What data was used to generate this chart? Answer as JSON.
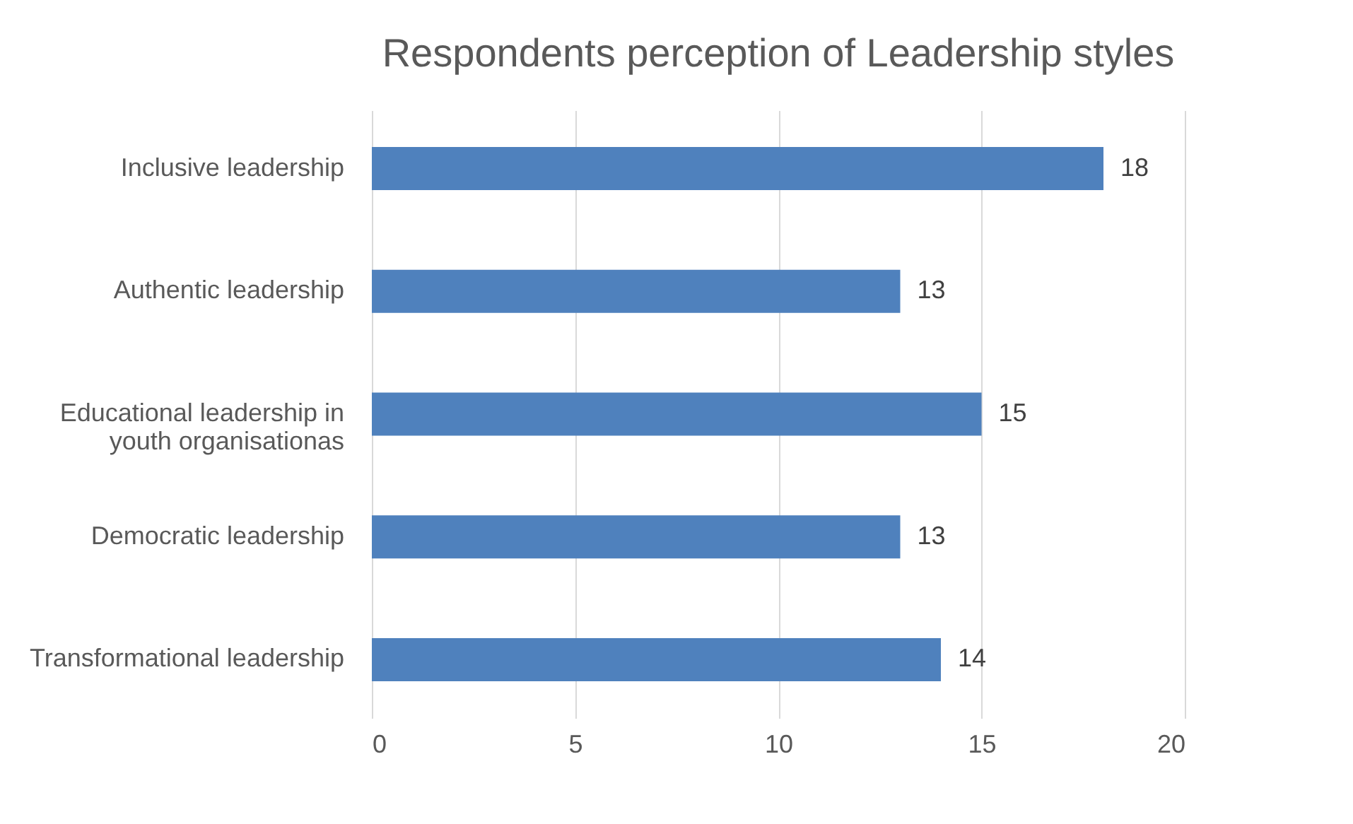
{
  "chart_data": {
    "type": "bar",
    "orientation": "horizontal",
    "title": "Respondents perception of Leadership styles",
    "categories": [
      "Inclusive leadership",
      "Authentic leadership",
      "Educational leadership in youth organisationas",
      "Democratic leadership",
      "Transformational leadership"
    ],
    "values": [
      18,
      13,
      15,
      13,
      14
    ],
    "color": "#4f81bd",
    "xlim": [
      0,
      20
    ],
    "xticks": [
      0,
      5,
      10,
      15,
      20
    ],
    "grid": "x",
    "data_labels": true
  }
}
